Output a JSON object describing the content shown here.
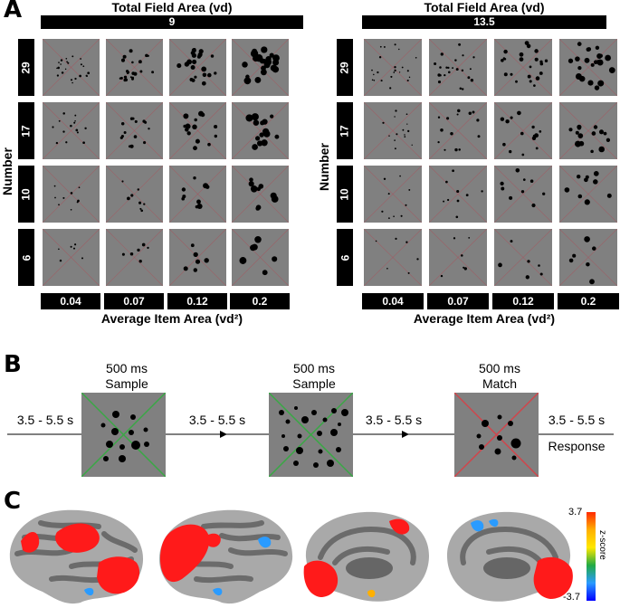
{
  "panelA": {
    "letter": "A",
    "title": "Total Field Area (vd)",
    "ylabel": "Number",
    "xlabel": "Average Item Area (vd²)",
    "groups": [
      {
        "field_area": "9",
        "rows": [
          "29",
          "17",
          "10",
          "6"
        ],
        "cols": [
          "0.04",
          "0.07",
          "0.12",
          "0.2"
        ]
      },
      {
        "field_area": "13.5",
        "rows": [
          "29",
          "17",
          "10",
          "6"
        ],
        "cols": [
          "0.04",
          "0.07",
          "0.12",
          "0.2"
        ]
      }
    ]
  },
  "panelB": {
    "letter": "B",
    "interval": "3.5 - 5.5 s",
    "stimuli": [
      {
        "time": "500 ms",
        "label": "Sample"
      },
      {
        "time": "500 ms",
        "label": "Sample"
      },
      {
        "time": "500 ms",
        "label": "Match"
      }
    ],
    "response": "Response"
  },
  "panelC": {
    "letter": "C",
    "colorbar": {
      "max": "3.7",
      "min": "-3.7",
      "label": "z-score"
    }
  },
  "colors": {
    "stimulus_gray": "#808080",
    "sample_cross": "#39a845",
    "match_cross": "#d0454b",
    "brain_light": "#a9a9a9",
    "brain_dark": "#666666",
    "activation": "#ff1a1a"
  }
}
